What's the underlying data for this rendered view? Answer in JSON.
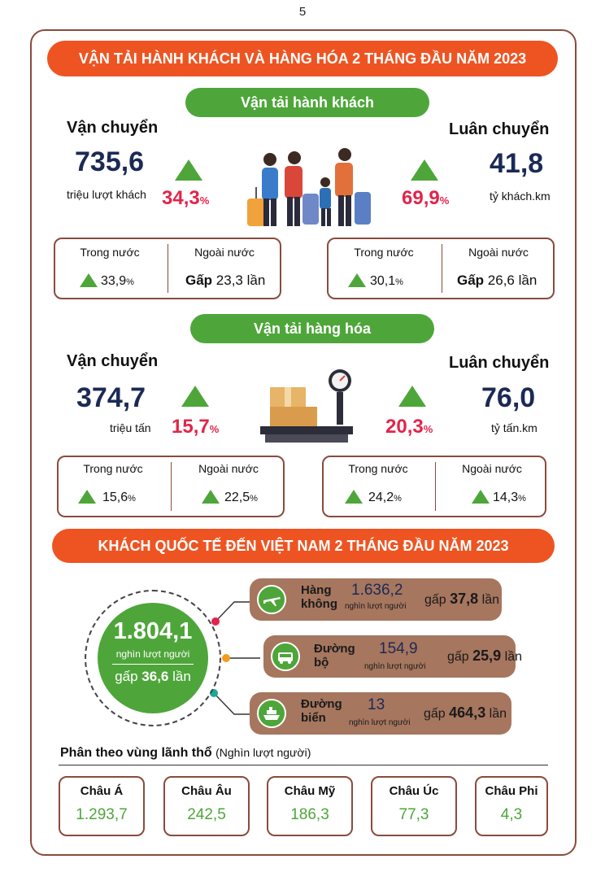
{
  "page_number": "5",
  "banner_title": "VẬN TẢI HÀNH KHÁCH VÀ HÀNG HÓA  2 THÁNG ĐẦU NĂM 2023",
  "passenger": {
    "section_label": "Vận tải hành khách",
    "transport": {
      "heading": "Vận chuyển",
      "value": "735,6",
      "unit": "triệu lượt khách",
      "growth": "34,3",
      "pct_sign": "%"
    },
    "rotation": {
      "heading": "Luân chuyển",
      "value": "41,8",
      "unit": "tỷ khách.km",
      "growth": "69,9",
      "pct_sign": "%"
    },
    "transport_breakdown": {
      "domestic_label": "Trong nước",
      "domestic_value": "33,9",
      "domestic_pct": "%",
      "foreign_label": "Ngoài  nước",
      "foreign_prefix": "Gấp",
      "foreign_value": "23,3",
      "foreign_suffix": "lần"
    },
    "rotation_breakdown": {
      "domestic_label": "Trong nước",
      "domestic_value": "30,1",
      "domestic_pct": "%",
      "foreign_label": "Ngoài  nước",
      "foreign_prefix": "Gấp",
      "foreign_value": "26,6",
      "foreign_suffix": "lần"
    }
  },
  "cargo": {
    "section_label": "Vận tải hàng hóa",
    "transport": {
      "heading": "Vận chuyển",
      "value": "374,7",
      "unit": "triệu tấn",
      "growth": "15,7",
      "pct_sign": "%"
    },
    "rotation": {
      "heading": "Luân chuyển",
      "value": "76,0",
      "unit": "tỷ tấn.km",
      "growth": "20,3",
      "pct_sign": "%"
    },
    "transport_breakdown": {
      "domestic_label": "Trong nước",
      "domestic_value": "15,6",
      "domestic_pct": "%",
      "foreign_label": "Ngoài  nước",
      "foreign_value": "22,5",
      "foreign_pct": "%"
    },
    "rotation_breakdown": {
      "domestic_label": "Trong nước",
      "domestic_value": "24,2",
      "domestic_pct": "%",
      "foreign_label": "Ngoài  nước",
      "foreign_value": "14,3",
      "foreign_pct": "%"
    }
  },
  "visitors": {
    "banner_title": "KHÁCH QUỐC TẾ ĐẾN VIỆT NAM 2 THÁNG ĐẦU NĂM 2023",
    "total": {
      "value": "1.804,1",
      "unit": "nghìn lượt người",
      "times_prefix": "gấp",
      "times_value": "36,6",
      "times_suffix": "lần"
    },
    "modes": [
      {
        "name_line1": "Hàng",
        "name_line2": "không",
        "value": "1.636,2",
        "unit": "nghìn lượt người",
        "times_prefix": "gấp",
        "times_value": "37,8",
        "times_suffix": "lần",
        "icon": "airplane-icon"
      },
      {
        "name_line1": "Đường",
        "name_line2": "bộ",
        "value": "154,9",
        "unit": "nghìn lượt người",
        "times_prefix": "gấp",
        "times_value": "25,9",
        "times_suffix": "lần",
        "icon": "car-icon"
      },
      {
        "name_line1": "Đường",
        "name_line2": "biển",
        "value": "13",
        "unit": "nghìn lượt người",
        "times_prefix": "gấp",
        "times_value": "464,3",
        "times_suffix": "lần",
        "icon": "ship-icon"
      }
    ],
    "connector_colors": [
      "#e2244a",
      "#f39c1e",
      "#1aa89a"
    ],
    "regions_title": "Phân theo vùng lãnh thổ",
    "regions_subtitle": "(Nghìn lượt người)",
    "regions": [
      {
        "name": "Châu Á",
        "value": "1.293,7"
      },
      {
        "name": "Châu Âu",
        "value": "242,5"
      },
      {
        "name": "Châu Mỹ",
        "value": "186,3"
      },
      {
        "name": "Châu Úc",
        "value": "77,3"
      },
      {
        "name": "Châu Phi",
        "value": "4,3"
      }
    ]
  },
  "colors": {
    "banner": "#ee5422",
    "green": "#4ea63a",
    "red": "#e2244a",
    "navy": "#1b2a55",
    "brown": "#8a4b3c",
    "mode_bg": "#a6765f"
  }
}
